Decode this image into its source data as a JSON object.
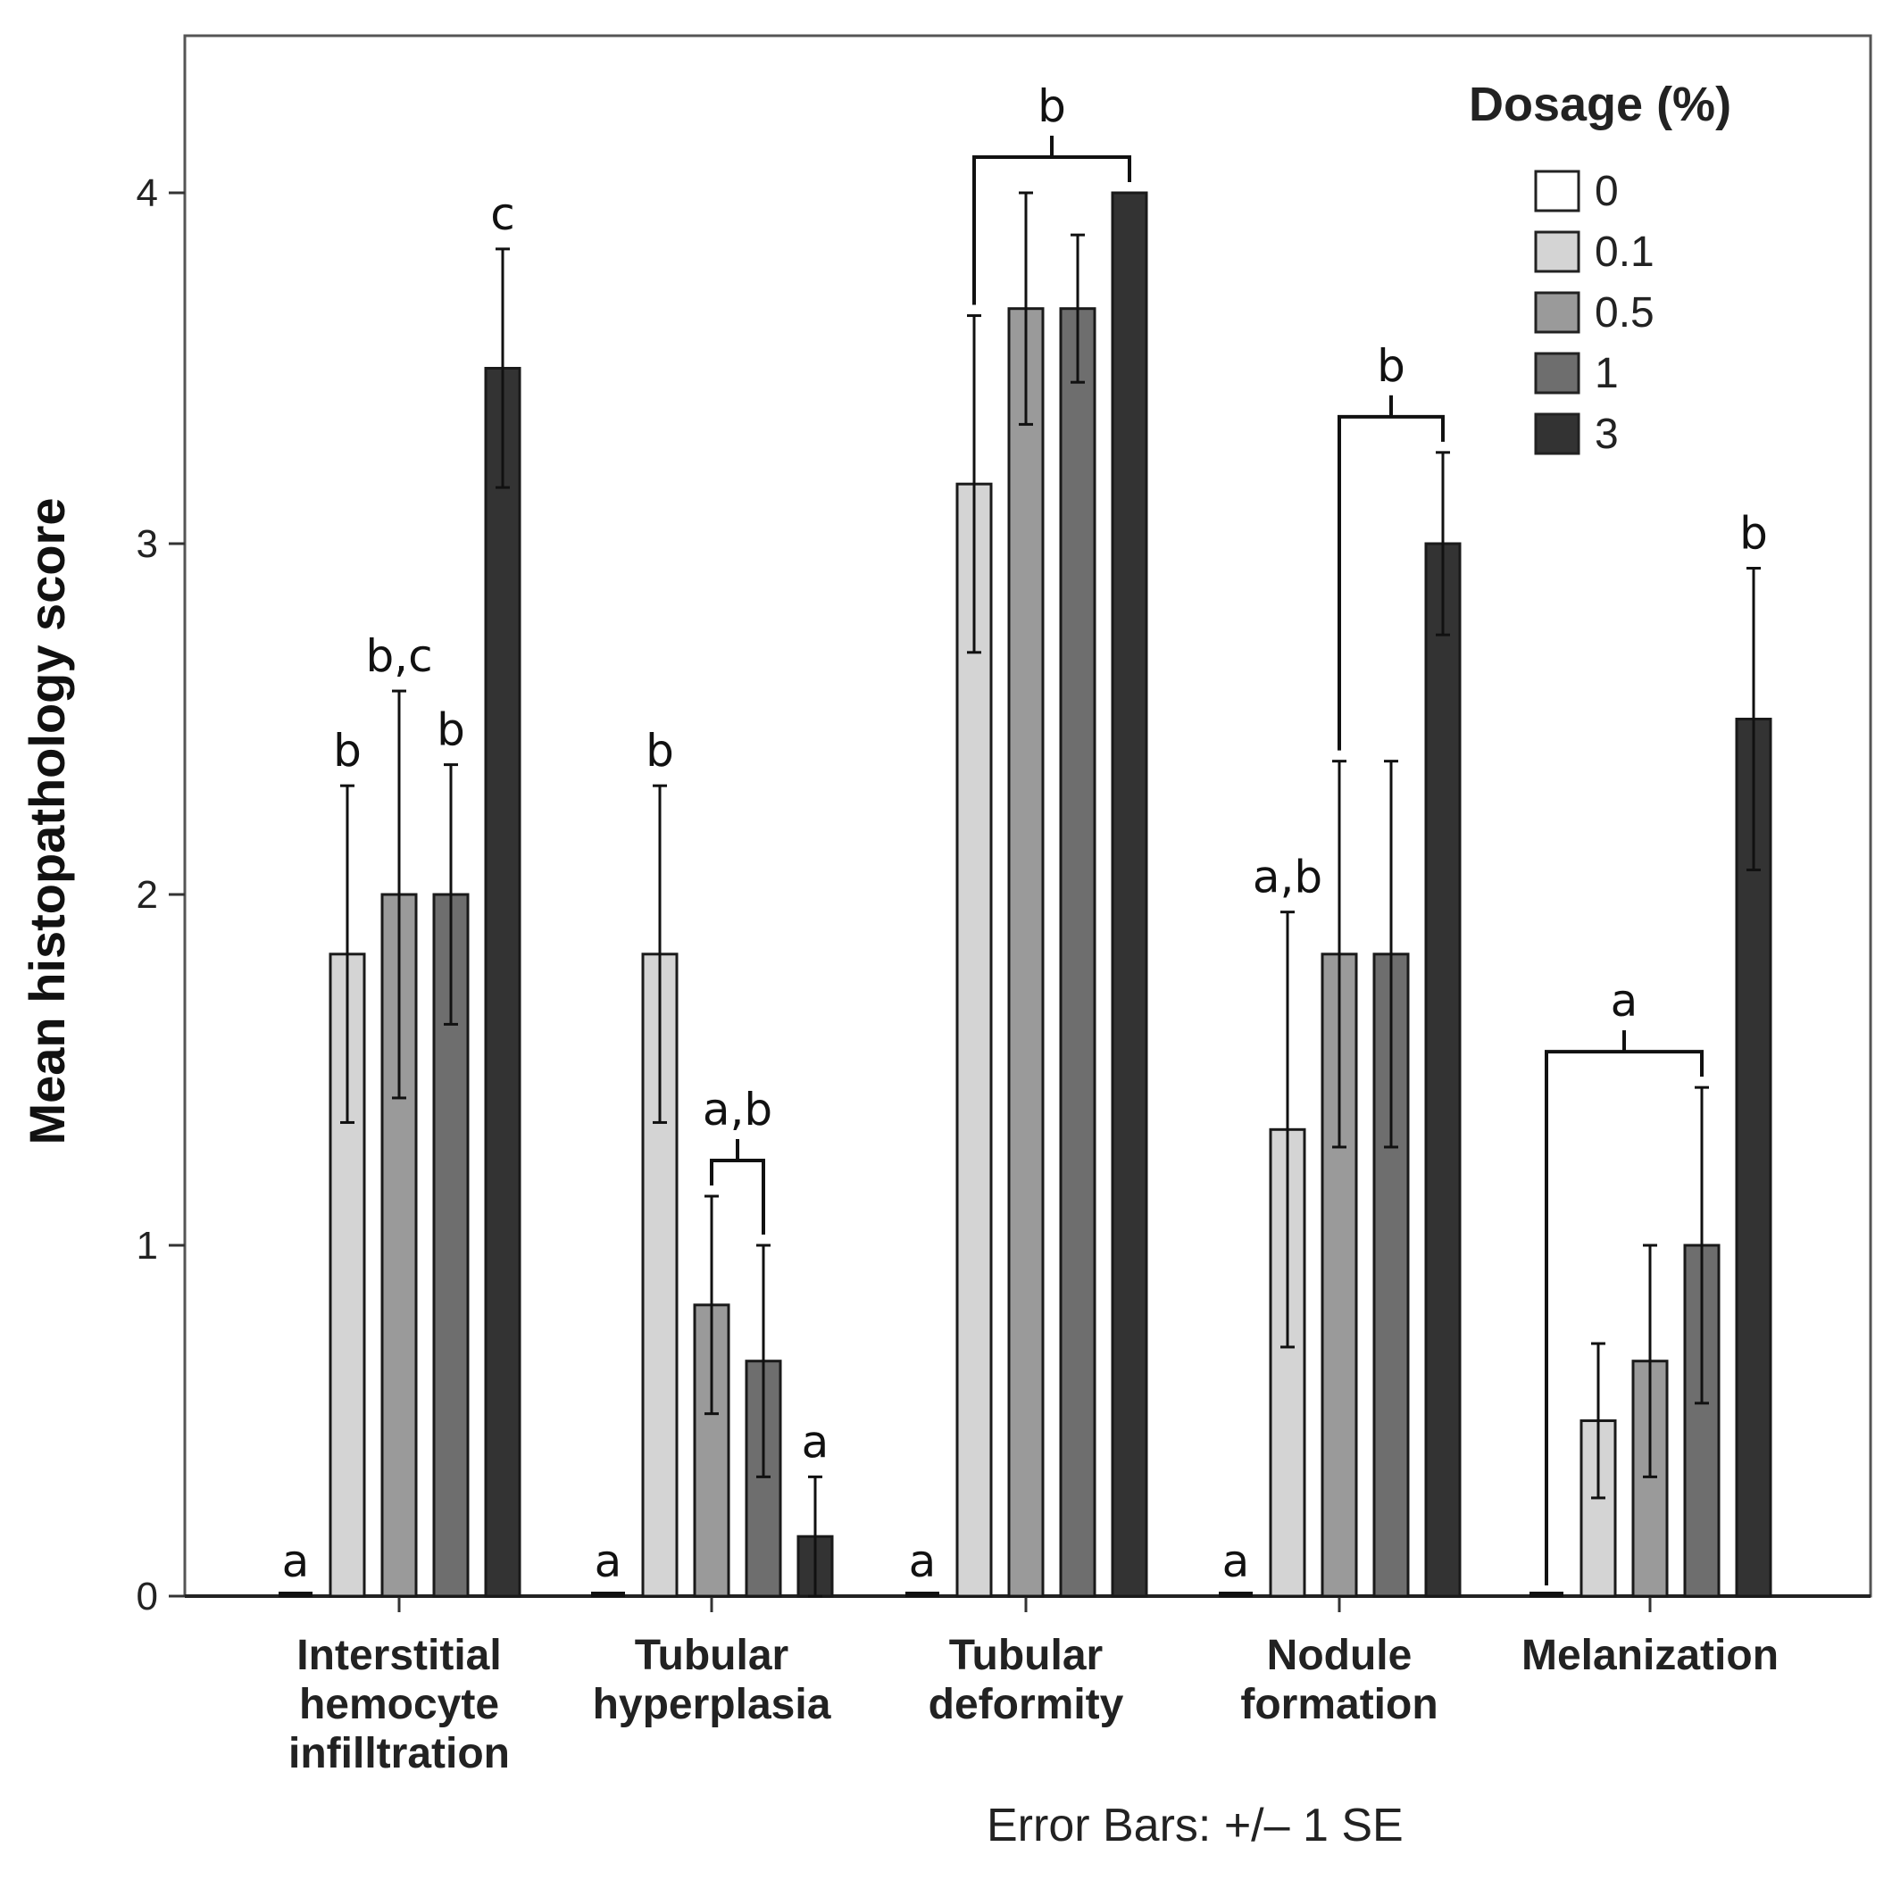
{
  "chart_data": {
    "type": "bar",
    "ylabel": "Mean histopathology score",
    "ylim": [
      0,
      4.5
    ],
    "yticks": [
      0,
      1,
      2,
      3,
      4
    ],
    "legend": {
      "title": "Dosage (%)",
      "position": "top-right",
      "entries": [
        "0",
        "0.1",
        "0.5",
        "1",
        "3"
      ]
    },
    "colors": [
      "#ffffff",
      "#d4d4d4",
      "#9a9a9a",
      "#6e6e6e",
      "#333333"
    ],
    "categories": [
      [
        "Interstitial",
        "hemocyte",
        "infilltration"
      ],
      [
        "Tubular",
        "hyperplasia"
      ],
      [
        "Tubular",
        "deformity"
      ],
      [
        "Nodule",
        "formation"
      ],
      [
        "Melanization"
      ]
    ],
    "series": [
      {
        "name": "0",
        "values": [
          0,
          0,
          0,
          0,
          0
        ],
        "se": [
          0,
          0,
          0,
          0,
          0
        ]
      },
      {
        "name": "0.1",
        "values": [
          1.83,
          1.83,
          3.17,
          1.33,
          0.5
        ],
        "se": [
          0.48,
          0.48,
          0.48,
          0.62,
          0.22
        ]
      },
      {
        "name": "0.5",
        "values": [
          2.0,
          0.83,
          3.67,
          1.83,
          0.67
        ],
        "se": [
          0.58,
          0.31,
          0.33,
          0.55,
          0.33
        ]
      },
      {
        "name": "1",
        "values": [
          2.0,
          0.67,
          3.67,
          1.83,
          1.0
        ],
        "se": [
          0.37,
          0.33,
          0.21,
          0.55,
          0.45
        ]
      },
      {
        "name": "3",
        "values": [
          3.5,
          0.17,
          4.0,
          3.0,
          2.5
        ],
        "se": [
          0.34,
          0.17,
          0,
          0.26,
          0.43
        ]
      }
    ],
    "annotations": [
      {
        "text": "a",
        "cat": 0,
        "from": 0,
        "to": 0
      },
      {
        "text": "b",
        "cat": 0,
        "from": 1,
        "to": 1
      },
      {
        "text": "b,c",
        "cat": 0,
        "from": 2,
        "to": 2
      },
      {
        "text": "b",
        "cat": 0,
        "from": 3,
        "to": 3
      },
      {
        "text": "c",
        "cat": 0,
        "from": 4,
        "to": 4
      },
      {
        "text": "a",
        "cat": 1,
        "from": 0,
        "to": 0
      },
      {
        "text": "b",
        "cat": 1,
        "from": 1,
        "to": 1
      },
      {
        "text": "a,b",
        "cat": 1,
        "from": 2,
        "to": 3,
        "bracket": true
      },
      {
        "text": "a",
        "cat": 1,
        "from": 4,
        "to": 4
      },
      {
        "text": "a",
        "cat": 2,
        "from": 0,
        "to": 0
      },
      {
        "text": "b",
        "cat": 2,
        "from": 1,
        "to": 4,
        "bracket": true
      },
      {
        "text": "a",
        "cat": 3,
        "from": 0,
        "to": 0
      },
      {
        "text": "a,b",
        "cat": 3,
        "from": 1,
        "to": 1
      },
      {
        "text": "b",
        "cat": 3,
        "from": 2,
        "to": 4,
        "bracket": true
      },
      {
        "text": "a",
        "cat": 4,
        "from": 0,
        "to": 3,
        "bracket": true
      },
      {
        "text": "b",
        "cat": 4,
        "from": 4,
        "to": 4
      }
    ],
    "footnote": "Error Bars: +/– 1 SE"
  }
}
